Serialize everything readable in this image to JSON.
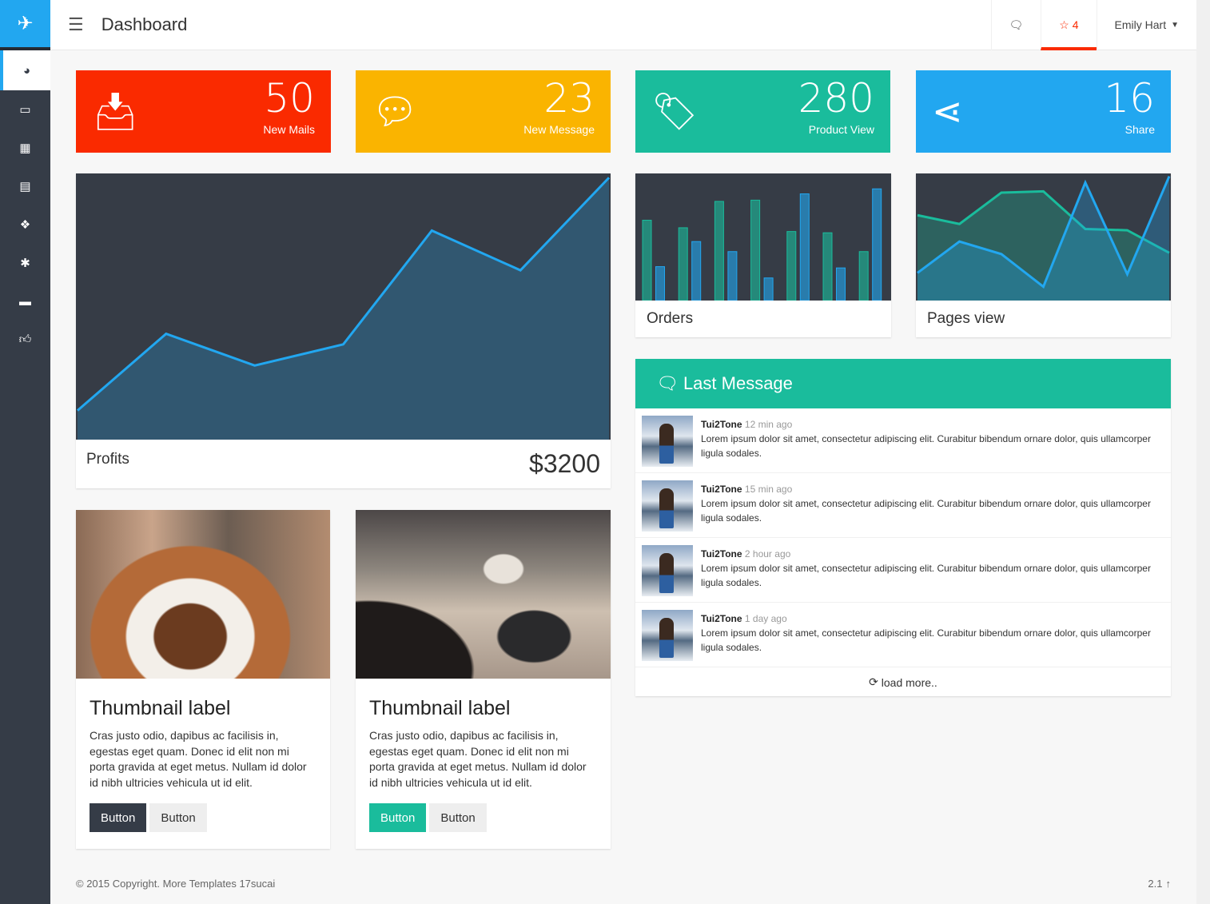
{
  "header": {
    "title": "Dashboard",
    "notif_count": "4",
    "user": "Emily Hart"
  },
  "sidebar": {
    "items": [
      "dashboard-icon",
      "desktop-icon",
      "table-icon",
      "file-icon",
      "cubes-icon",
      "cog-icon",
      "archive-icon",
      "thumbs-up-icon"
    ]
  },
  "stats": [
    {
      "value": "50",
      "label": "New Mails",
      "color": "#fa2a00",
      "icon": "inbox-icon"
    },
    {
      "value": "23",
      "label": "New Message",
      "color": "#fab400",
      "icon": "comments-icon"
    },
    {
      "value": "280",
      "label": "Product View",
      "color": "#1abc9c",
      "icon": "tags-icon"
    },
    {
      "value": "16",
      "label": "Share",
      "color": "#22a7f0",
      "icon": "share-icon"
    }
  ],
  "profits": {
    "label": "Profits",
    "amount": "$3200"
  },
  "orders": {
    "label": "Orders"
  },
  "pages_view": {
    "label": "Pages view"
  },
  "chart_data": [
    {
      "type": "area",
      "name": "profits",
      "values": [
        11,
        40,
        28,
        36,
        79,
        64,
        99
      ],
      "ylim": [
        0,
        100
      ],
      "color": "#22a7f0"
    },
    {
      "type": "bar",
      "name": "orders",
      "series": [
        {
          "values": [
            64,
            58,
            79,
            80,
            55,
            54,
            39
          ],
          "color": "#1abc9c"
        },
        {
          "values": [
            27,
            47,
            39,
            18,
            85,
            26,
            89
          ],
          "color": "#22a7f0"
        }
      ],
      "ylim": [
        0,
        100
      ]
    },
    {
      "type": "area",
      "name": "pages_view",
      "series": [
        {
          "values": [
            68,
            61,
            86,
            87,
            57,
            56,
            38
          ],
          "color": "#1abc9c"
        },
        {
          "values": [
            22,
            47,
            37,
            11,
            94,
            21,
            99
          ],
          "color": "#22a7f0"
        }
      ],
      "ylim": [
        0,
        100
      ]
    }
  ],
  "last_message": {
    "title": "Last Message",
    "load_more": "load more..",
    "items": [
      {
        "name": "Tui2Tone",
        "time": "12 min ago",
        "text": "Lorem ipsum dolor sit amet, consectetur adipiscing elit. Curabitur bibendum ornare dolor, quis ullamcorper ligula sodales."
      },
      {
        "name": "Tui2Tone",
        "time": "15 min ago",
        "text": "Lorem ipsum dolor sit amet, consectetur adipiscing elit. Curabitur bibendum ornare dolor, quis ullamcorper ligula sodales."
      },
      {
        "name": "Tui2Tone",
        "time": "2 hour ago",
        "text": "Lorem ipsum dolor sit amet, consectetur adipiscing elit. Curabitur bibendum ornare dolor, quis ullamcorper ligula sodales."
      },
      {
        "name": "Tui2Tone",
        "time": "1 day ago",
        "text": "Lorem ipsum dolor sit amet, consectetur adipiscing elit. Curabitur bibendum ornare dolor, quis ullamcorper ligula sodales."
      }
    ]
  },
  "thumbnails": [
    {
      "label": "Thumbnail label",
      "text": "Cras justo odio, dapibus ac facilisis in, egestas eget quam. Donec id elit non mi porta gravida at eget metus. Nullam id dolor id nibh ultricies vehicula ut id elit.",
      "btn1": "Button",
      "btn2": "Button",
      "btn1_color": "#353c47"
    },
    {
      "label": "Thumbnail label",
      "text": "Cras justo odio, dapibus ac facilisis in, egestas eget quam. Donec id elit non mi porta gravida at eget metus. Nullam id dolor id nibh ultricies vehicula ut id elit.",
      "btn1": "Button",
      "btn2": "Button",
      "btn1_color": "#1abc9c"
    }
  ],
  "footer": {
    "copyright": "© 2015 Copyright. More Templates 17sucai",
    "version": "2.1"
  }
}
